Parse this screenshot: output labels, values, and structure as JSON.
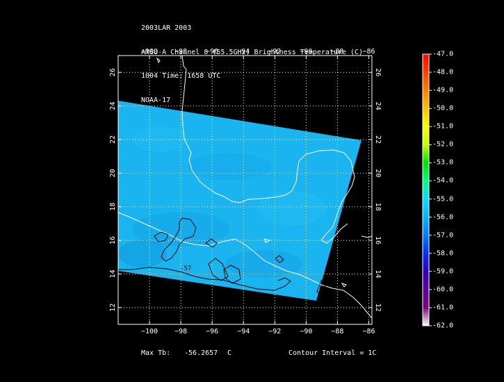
{
  "header": {
    "line1": "2003LAR 2003",
    "line2": "AMSU-A Channel 8 (55.5GHz) Brightness Temperature (C)",
    "line3": "1004 Time: 1658 UTC",
    "line4": "NOAA-17"
  },
  "map": {
    "lon_ticks": [
      "-100",
      "-98",
      "-96",
      "-94",
      "-92",
      "-90",
      "-88",
      "-86"
    ],
    "lat_ticks": [
      "12",
      "14",
      "16",
      "18",
      "20",
      "22",
      "24",
      "26"
    ],
    "lon_range": [
      -102.0,
      -85.8
    ],
    "lat_range": [
      11.0,
      27.0
    ],
    "swath_color": "#1ab4f0",
    "coast_color": "#ffffff",
    "contour_color": "#000000",
    "contour_label": "-57"
  },
  "colorbar": {
    "labels": [
      "-47.0",
      "-48.0",
      "-49.0",
      "-50.0",
      "-51.0",
      "-52.0",
      "-53.0",
      "-54.0",
      "-55.0",
      "-56.0",
      "-57.0",
      "-58.0",
      "-59.0",
      "-60.0",
      "-61.0",
      "-62.0"
    ],
    "colors": [
      "#ff0000",
      "#ff4000",
      "#ff8000",
      "#ffc000",
      "#ffff00",
      "#c0ff00",
      "#00e000",
      "#00ff80",
      "#00e0ff",
      "#00b4ff",
      "#0080ff",
      "#0030ff",
      "#3000c0",
      "#6000a0",
      "#800080",
      "#ffffff"
    ]
  },
  "footer": {
    "max_label": "Max Tb:",
    "max_value": "-56.2657",
    "max_unit": "C",
    "contour": "Contour Interval = 1C"
  }
}
